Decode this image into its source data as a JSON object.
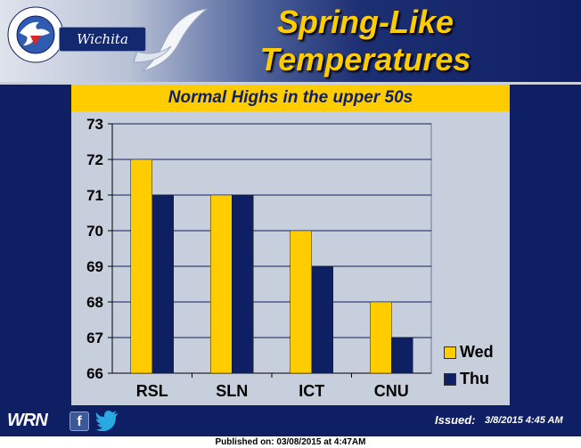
{
  "header": {
    "title_line1": "Spring-Like",
    "title_line2": "Temperatures",
    "office": "Wichita",
    "logo_text": "NATIONAL WEATHER SERVICE"
  },
  "subtitle": "Normal Highs in the upper 50s",
  "footer": {
    "wrn": "WRN",
    "facebook": "f",
    "issued_label": "Issued:",
    "issued_time": "3/8/2015 4:45 AM"
  },
  "published": "Published on: 03/08/2015 at 4:47AM",
  "colors": {
    "navy": "#0e1f63",
    "gold": "#ffcc00",
    "plot_bg": "#c7cfdc"
  },
  "icons": [
    "nws-logo-icon",
    "swoosh-icon",
    "facebook-icon",
    "twitter-icon"
  ],
  "chart_data": {
    "type": "bar",
    "categories": [
      "RSL",
      "SLN",
      "ICT",
      "CNU"
    ],
    "series": [
      {
        "name": "Wed",
        "values": [
          72,
          71,
          70,
          68
        ],
        "color": "#ffcc00"
      },
      {
        "name": "Thu",
        "values": [
          71,
          71,
          69,
          67
        ],
        "color": "#0e1f63"
      }
    ],
    "ylim": [
      66,
      73
    ],
    "yticks": [
      66,
      67,
      68,
      69,
      70,
      71,
      72,
      73
    ],
    "grid": true,
    "legend": "right"
  }
}
